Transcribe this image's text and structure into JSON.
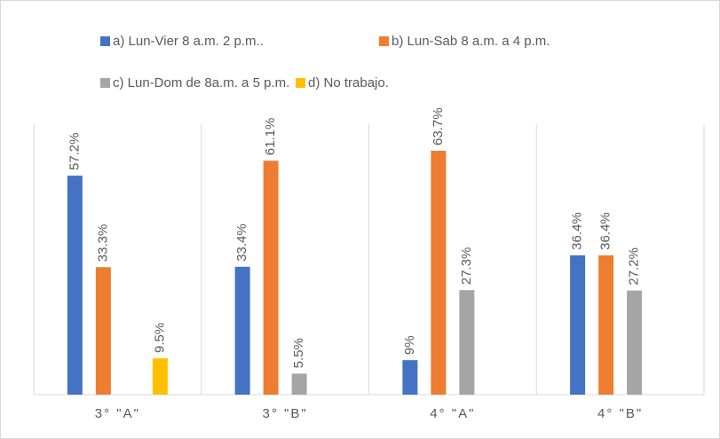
{
  "chart_data": {
    "type": "bar",
    "categories": [
      "3° \"A\"",
      "3° \"B\"",
      "4° \"A\"",
      "4° \"B\""
    ],
    "series": [
      {
        "name": "a) Lun-Vier 8 a.m. 2 p.m..",
        "color": "#4472c4",
        "values": [
          57.2,
          33.4,
          9,
          36.4
        ],
        "value_labels": [
          "57.2%",
          "33.4%",
          "9%",
          "36.4%"
        ]
      },
      {
        "name": "b) Lun-Sab 8 a.m. a 4 p.m.",
        "color": "#ed7d31",
        "values": [
          33.3,
          61.1,
          63.7,
          36.4
        ],
        "value_labels": [
          "33.3%",
          "61.1%",
          "63.7%",
          "36.4%"
        ]
      },
      {
        "name": "c) Lun-Dom de 8a.m. a 5 p.m.",
        "color": "#a5a5a5",
        "values": [
          null,
          5.5,
          27.3,
          27.2
        ],
        "value_labels": [
          null,
          "5.5%",
          "27.3%",
          "27.2%"
        ]
      },
      {
        "name": "d) No trabajo.",
        "color": "#ffc000",
        "values": [
          9.5,
          null,
          null,
          null
        ],
        "value_labels": [
          "9.5%",
          null,
          null,
          null
        ]
      }
    ],
    "legend": "top"
  }
}
